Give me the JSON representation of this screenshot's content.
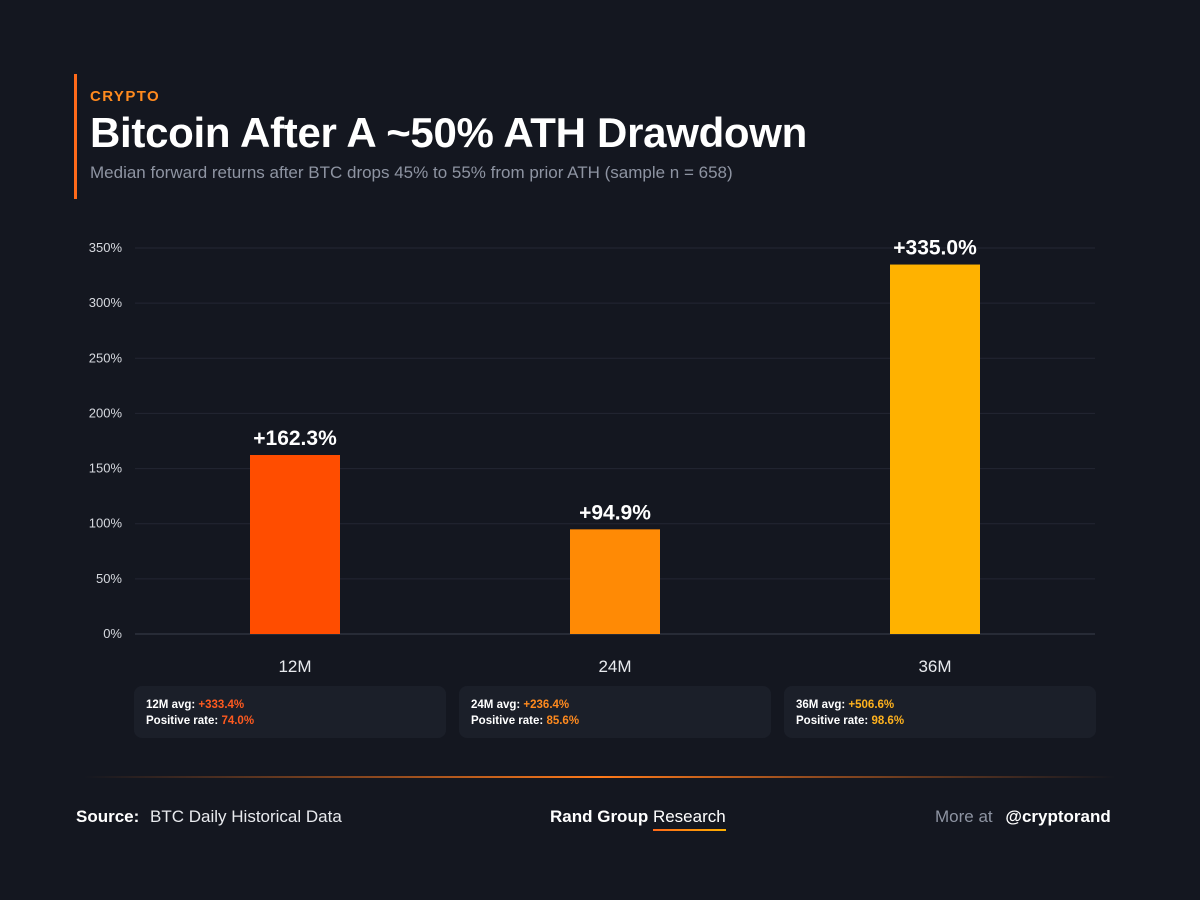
{
  "header": {
    "kicker": "CRYPTO",
    "title": "Bitcoin After A ~50% ATH Drawdown",
    "subtitle": "Median forward returns after BTC drops 45% to 55% from prior ATH (sample n = 658)"
  },
  "chart_data": {
    "type": "bar",
    "categories": [
      "12M",
      "24M",
      "36M"
    ],
    "values": [
      162.3,
      94.9,
      335.0
    ],
    "data_labels": [
      "+162.3%",
      "+94.9%",
      "+335.0%"
    ],
    "bar_colors": [
      "#ff4d00",
      "#ff8a05",
      "#ffb200"
    ],
    "ylim": [
      0,
      350
    ],
    "yticks": [
      0,
      50,
      100,
      150,
      200,
      250,
      300,
      350
    ],
    "ytick_labels": [
      "0%",
      "50%",
      "100%",
      "150%",
      "200%",
      "250%",
      "300%",
      "350%"
    ],
    "grid": true,
    "xlabel": "",
    "ylabel": ""
  },
  "stats": [
    {
      "avg_label": "12M avg:",
      "avg_value": "+333.4%",
      "pos_label": "Positive rate:",
      "pos_value": "74.0%",
      "color": "#ff5a1f"
    },
    {
      "avg_label": "24M avg:",
      "avg_value": "+236.4%",
      "pos_label": "Positive rate:",
      "pos_value": "85.6%",
      "color": "#ff8a1e"
    },
    {
      "avg_label": "36M avg:",
      "avg_value": "+506.6%",
      "pos_label": "Positive rate:",
      "pos_value": "98.6%",
      "color": "#ffb21e"
    }
  ],
  "footer": {
    "source_key": "Source:",
    "source_value": "BTC Daily Historical Data",
    "brand_strong": "Rand Group",
    "brand_light": "Research",
    "more_at": "More at",
    "handle": "@cryptorand"
  }
}
